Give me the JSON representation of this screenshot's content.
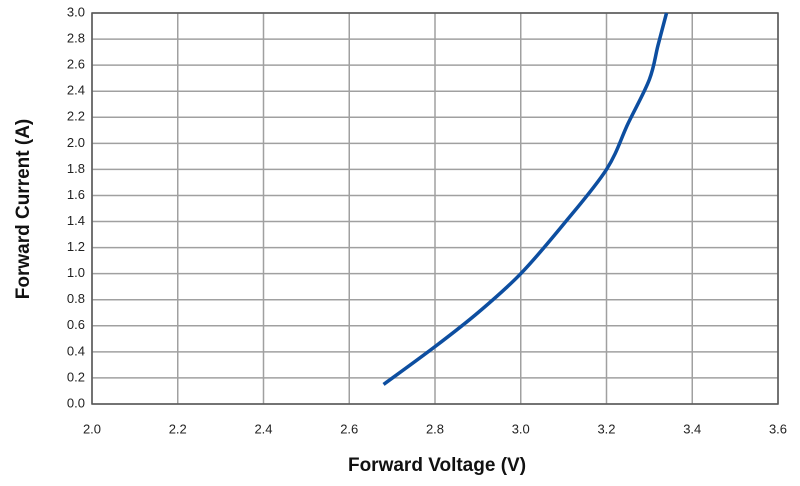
{
  "chart_data": {
    "type": "line",
    "x_label": "Forward Voltage (V)",
    "y_label": "Forward Current (A)",
    "x": [
      2.68,
      2.8,
      2.9,
      3.0,
      3.1,
      3.2,
      3.25,
      3.3,
      3.32,
      3.34
    ],
    "series": [
      {
        "color": "#0d4ea0",
        "values": [
          0.15,
          0.44,
          0.7,
          1.0,
          1.38,
          1.8,
          2.15,
          2.49,
          2.75,
          3.0
        ]
      }
    ],
    "xlim": [
      2.0,
      3.6
    ],
    "xticks": [
      {
        "value": 2,
        "label": "2.0"
      },
      2.2,
      2.4,
      2.6,
      2.8,
      {
        "value": 3,
        "label": "3.0"
      },
      3.2,
      3.4,
      3.6
    ],
    "ylim": [
      0,
      3
    ],
    "yticks": [
      {
        "value": 0,
        "label": "0.0"
      },
      0.2,
      0.4,
      0.6,
      0.8,
      {
        "value": 1,
        "label": "1.0"
      },
      1.2,
      1.4,
      1.6,
      1.8,
      {
        "value": 2,
        "label": "2.0"
      },
      2.2,
      2.4,
      2.6,
      2.8,
      {
        "value": 3,
        "label": "3.0"
      }
    ],
    "grid": true
  }
}
